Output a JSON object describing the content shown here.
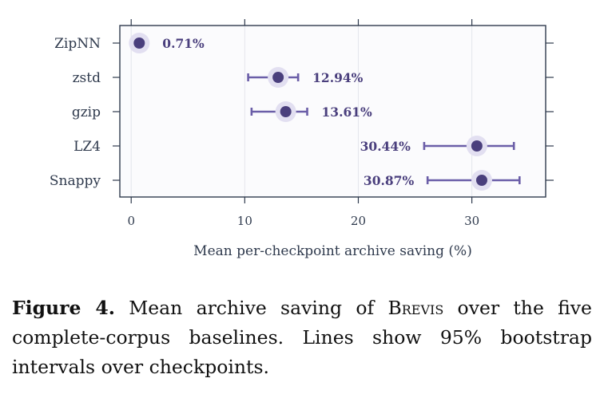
{
  "chart_data": {
    "type": "dot-plot-with-error-bars",
    "orientation": "horizontal",
    "xlabel": "Mean per-checkpoint archive saving (%)",
    "ylabel": "",
    "xlim": [
      -1,
      36.5
    ],
    "xticks": [
      0,
      10,
      20,
      30
    ],
    "grid": "vertical",
    "categories": [
      "ZipNN",
      "zstd",
      "gzip",
      "LZ4",
      "Snappy"
    ],
    "values": [
      0.71,
      12.94,
      13.61,
      30.44,
      30.87
    ],
    "ci_low": [
      null,
      10.3,
      10.6,
      25.8,
      26.1
    ],
    "ci_high": [
      null,
      14.7,
      15.5,
      33.7,
      34.2
    ],
    "value_labels": [
      "0.71%",
      "12.94%",
      "13.61%",
      "30.44%",
      "30.87%"
    ],
    "label_side": [
      "right",
      "right",
      "right",
      "left",
      "left"
    ],
    "colors": {
      "point": "#4a3f7d",
      "halo": "#e2dff1",
      "interval": "#6b5ea8",
      "label": "#4a3f7d",
      "frame": "#2f3a4d",
      "grid": "#e4e5ec",
      "plot_bg": "#fbfbfd",
      "axis_text": "#2f3a4d"
    }
  },
  "caption": {
    "label": "Figure 4.",
    "text_before": "Mean archive saving of",
    "system": "Brevis",
    "text_after": "over the five complete-corpus baselines. Lines show 95% bootstrap intervals over checkpoints."
  }
}
